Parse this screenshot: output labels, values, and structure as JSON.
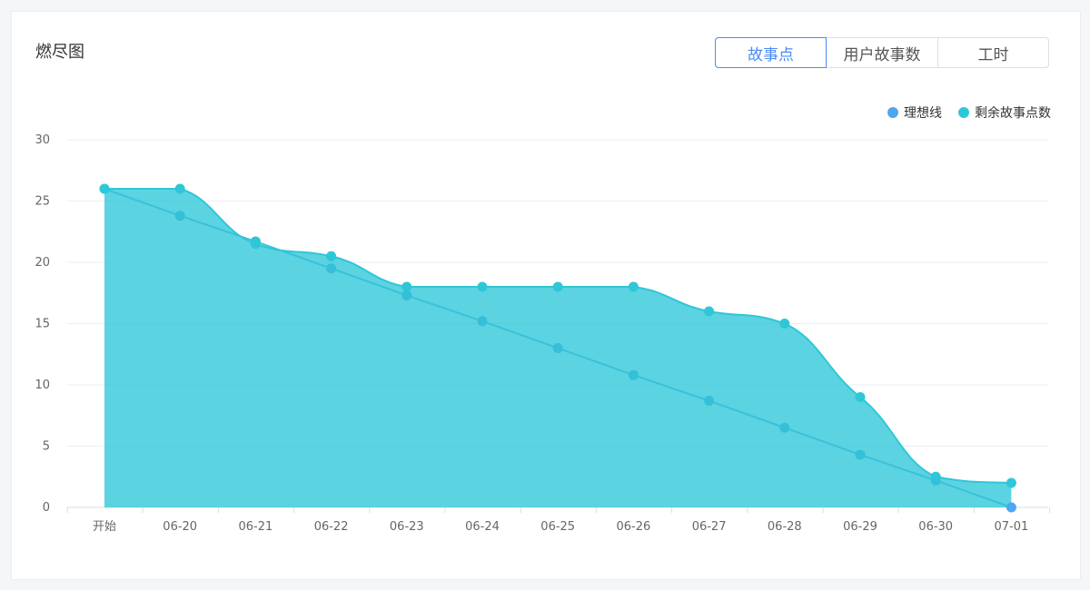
{
  "title": "燃尽图",
  "tabs": [
    {
      "label": "故事点",
      "active": true
    },
    {
      "label": "用户故事数",
      "active": false
    },
    {
      "label": "工时",
      "active": false
    }
  ],
  "legend": [
    {
      "label": "理想线",
      "color": "#4da6f0"
    },
    {
      "label": "剩余故事点数",
      "color": "#2ec7d8"
    }
  ],
  "chart_data": {
    "type": "area",
    "categories": [
      "开始",
      "06-20",
      "06-21",
      "06-22",
      "06-23",
      "06-24",
      "06-25",
      "06-26",
      "06-27",
      "06-28",
      "06-29",
      "06-30",
      "07-01"
    ],
    "ylim": [
      0,
      30
    ],
    "yticks": [
      0,
      5,
      10,
      15,
      20,
      25,
      30
    ],
    "grid": true,
    "legend_position": "top-right",
    "series": [
      {
        "name": "理想线",
        "type": "line",
        "color": "#4da6f0",
        "values": [
          26,
          23.8,
          21.7,
          19.5,
          17.3,
          15.2,
          13.0,
          10.8,
          8.7,
          6.5,
          4.3,
          2.2,
          0
        ]
      },
      {
        "name": "剩余故事点数",
        "type": "area",
        "color": "#2ec7d8",
        "values": [
          26,
          26,
          21.5,
          20.5,
          18,
          18,
          18,
          18,
          16,
          15,
          9,
          2.5,
          2
        ]
      }
    ]
  }
}
